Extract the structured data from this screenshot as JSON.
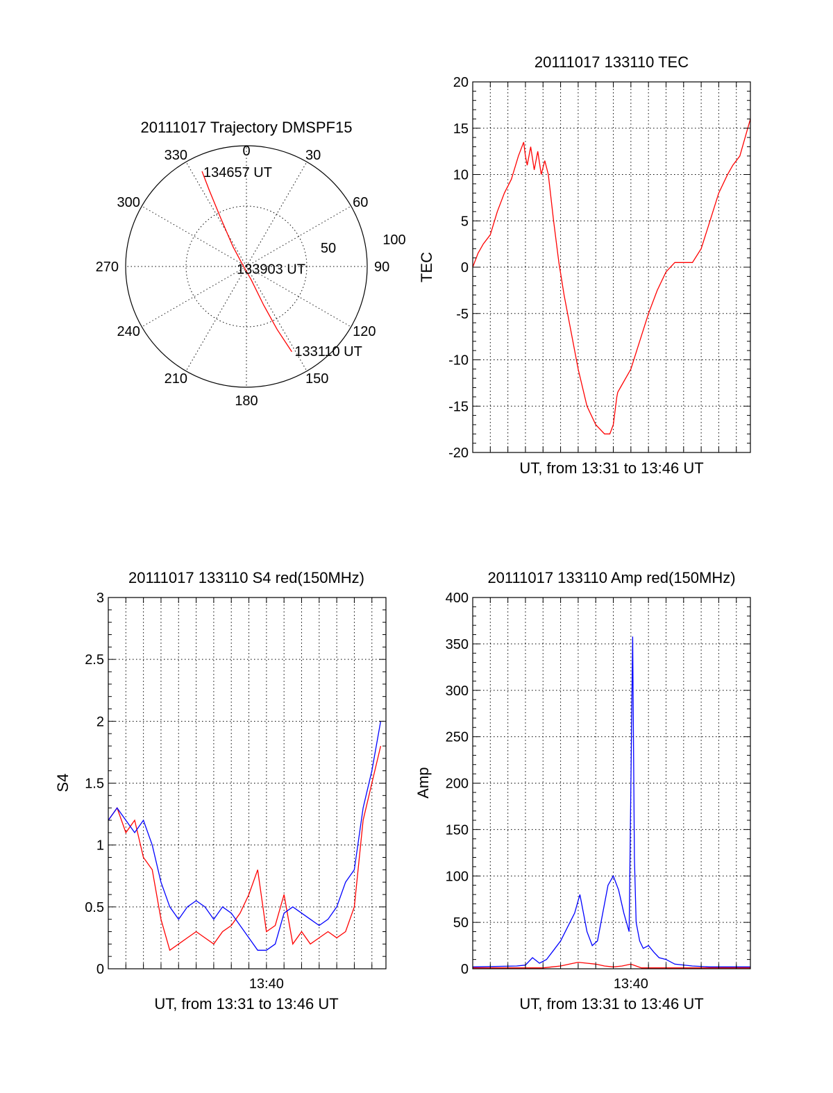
{
  "chart_data": [
    {
      "id": "trajectory",
      "type": "polar",
      "title": "20111017 Trajectory DMSPF15",
      "azimuth_labels": [
        "0",
        "30",
        "60",
        "90",
        "120",
        "150",
        "180",
        "210",
        "240",
        "270",
        "300",
        "330"
      ],
      "radial_labels": [
        "50",
        "100"
      ],
      "rlim": [
        0,
        100
      ],
      "grid": true,
      "series": [
        {
          "color": "#ff0000",
          "points": [
            {
              "az": 335,
              "r": 87
            },
            {
              "az": 334,
              "r": 70
            },
            {
              "az": 332,
              "r": 45
            },
            {
              "az": 326,
              "r": 20
            },
            {
              "az": 300,
              "r": 4
            },
            {
              "az": 160,
              "r": 12
            },
            {
              "az": 156,
              "r": 35
            },
            {
              "az": 154,
              "r": 58
            },
            {
              "az": 152,
              "r": 80
            }
          ]
        }
      ],
      "annotations": [
        {
          "text": "134657 UT",
          "az": 335,
          "r": 87
        },
        {
          "text": "133903 UT",
          "az": 300,
          "r": 4
        },
        {
          "text": "133110 UT",
          "az": 152,
          "r": 80
        }
      ]
    },
    {
      "id": "tec",
      "type": "line",
      "title": "20111017 133110 TEC",
      "xlabel": "UT, from 13:31 to 13:46 UT",
      "ylabel": "TEC",
      "xlim_min": [
        0,
        15.8
      ],
      "ylim": [
        -20,
        20
      ],
      "yticks": [
        -20,
        -15,
        -10,
        -5,
        0,
        5,
        10,
        15,
        20
      ],
      "xgrid_min": [
        1,
        2,
        3,
        4,
        5,
        6,
        7,
        8,
        9,
        10,
        11,
        12,
        13,
        14,
        15
      ],
      "grid": true,
      "series": [
        {
          "color": "#ff0000",
          "x": [
            0,
            0.3,
            0.6,
            1.0,
            1.4,
            1.8,
            2.2,
            2.6,
            2.9,
            3.0,
            3.1,
            3.3,
            3.5,
            3.7,
            3.9,
            4.1,
            4.3,
            4.6,
            4.9,
            5.2,
            5.5,
            6.0,
            6.5,
            7.0,
            7.5,
            7.8,
            8.0,
            8.2,
            8.25,
            8.4,
            9.0,
            9.5,
            10.0,
            10.5,
            11.0,
            11.5,
            12.0,
            12.5,
            13.0,
            13.5,
            14.0,
            14.5,
            14.8,
            15.2,
            15.5,
            15.8
          ],
          "y": [
            0,
            1.5,
            2.5,
            3.5,
            6,
            8,
            9.5,
            12,
            13.5,
            12,
            11,
            13,
            10.5,
            12.5,
            10,
            11.5,
            10,
            5,
            0.5,
            -3,
            -6,
            -11,
            -15,
            -17,
            -18,
            -18,
            -17,
            -14,
            -13.5,
            -13,
            -11,
            -8,
            -5,
            -2.5,
            -0.5,
            0.5,
            0.5,
            0.5,
            2,
            5,
            8,
            10,
            11,
            12,
            14,
            16
          ]
        }
      ]
    },
    {
      "id": "s4",
      "type": "line",
      "title": "20111017 133110 S4 red(150MHz)",
      "xlabel": "UT, from 13:31 to 13:46 UT",
      "ylabel": "S4",
      "xlim_min": [
        0,
        15.8
      ],
      "ylim": [
        0,
        3
      ],
      "yticks": [
        0,
        0.5,
        1,
        1.5,
        2,
        2.5,
        3
      ],
      "xtick_labels": [
        {
          "x": 9,
          "label": "13:40"
        }
      ],
      "xgrid_min": [
        1,
        2,
        3,
        4,
        5,
        6,
        7,
        8,
        9,
        10,
        11,
        12,
        13,
        14,
        15
      ],
      "grid": true,
      "series": [
        {
          "color": "#ff0000",
          "x": [
            0,
            0.5,
            1.0,
            1.5,
            2.0,
            2.5,
            3.0,
            3.5,
            4.0,
            4.5,
            5.0,
            5.5,
            6.0,
            6.5,
            7.0,
            7.5,
            8.0,
            8.5,
            9.0,
            9.5,
            10.0,
            10.5,
            11.0,
            11.5,
            12.0,
            12.5,
            13.0,
            13.5,
            14.0,
            14.5,
            15.0,
            15.5
          ],
          "y": [
            1.2,
            1.3,
            1.1,
            1.2,
            0.9,
            0.8,
            0.4,
            0.15,
            0.2,
            0.25,
            0.3,
            0.25,
            0.2,
            0.3,
            0.35,
            0.45,
            0.6,
            0.8,
            0.3,
            0.35,
            0.6,
            0.2,
            0.3,
            0.2,
            0.25,
            0.3,
            0.25,
            0.3,
            0.5,
            1.2,
            1.5,
            1.8
          ]
        },
        {
          "color": "#0000ff",
          "x": [
            0,
            0.5,
            1.0,
            1.5,
            2.0,
            2.5,
            3.0,
            3.5,
            4.0,
            4.5,
            5.0,
            5.5,
            6.0,
            6.5,
            7.0,
            7.5,
            8.0,
            8.5,
            9.0,
            9.5,
            10.0,
            10.5,
            11.0,
            11.5,
            12.0,
            12.5,
            13.0,
            13.5,
            14.0,
            14.5,
            15.0,
            15.5
          ],
          "y": [
            1.2,
            1.3,
            1.2,
            1.1,
            1.2,
            1.0,
            0.7,
            0.5,
            0.4,
            0.5,
            0.55,
            0.5,
            0.4,
            0.5,
            0.45,
            0.35,
            0.25,
            0.15,
            0.15,
            0.2,
            0.45,
            0.5,
            0.45,
            0.4,
            0.35,
            0.4,
            0.5,
            0.7,
            0.8,
            1.3,
            1.6,
            2.0
          ]
        }
      ]
    },
    {
      "id": "amp",
      "type": "line",
      "title": "20111017 133110 Amp red(150MHz)",
      "xlabel": "UT, from 13:31 to 13:46 UT",
      "ylabel": "Amp",
      "xlim_min": [
        0,
        15.8
      ],
      "ylim": [
        0,
        400
      ],
      "yticks": [
        0,
        50,
        100,
        150,
        200,
        250,
        300,
        350,
        400
      ],
      "xtick_labels": [
        {
          "x": 9,
          "label": "13:40"
        }
      ],
      "xgrid_min": [
        1,
        2,
        3,
        4,
        5,
        6,
        7,
        8,
        9,
        10,
        11,
        12,
        13,
        14,
        15
      ],
      "grid": true,
      "series": [
        {
          "color": "#ff0000",
          "x": [
            0,
            4.0,
            4.5,
            5.0,
            5.5,
            6.0,
            6.5,
            7.0,
            7.5,
            8.0,
            8.5,
            9.0,
            9.3,
            9.6,
            10.0,
            15.8
          ],
          "y": [
            1,
            1,
            2,
            3,
            5,
            7,
            6,
            5,
            3,
            2,
            3,
            5,
            3,
            1,
            1,
            1
          ]
        },
        {
          "color": "#0000ff",
          "x": [
            0,
            2.5,
            3.0,
            3.4,
            3.8,
            4.2,
            4.6,
            5.0,
            5.4,
            5.8,
            6.1,
            6.3,
            6.5,
            6.8,
            7.1,
            7.4,
            7.7,
            8.0,
            8.3,
            8.6,
            8.9,
            9.1,
            9.2,
            9.3,
            9.5,
            9.7,
            10.0,
            10.3,
            10.6,
            11.0,
            11.5,
            12.5,
            13.5,
            15.8
          ],
          "y": [
            2,
            3,
            4,
            12,
            6,
            10,
            20,
            30,
            45,
            60,
            80,
            60,
            40,
            25,
            30,
            60,
            90,
            100,
            85,
            60,
            40,
            358,
            120,
            50,
            30,
            22,
            25,
            18,
            12,
            10,
            5,
            3,
            2,
            2
          ]
        }
      ]
    }
  ]
}
